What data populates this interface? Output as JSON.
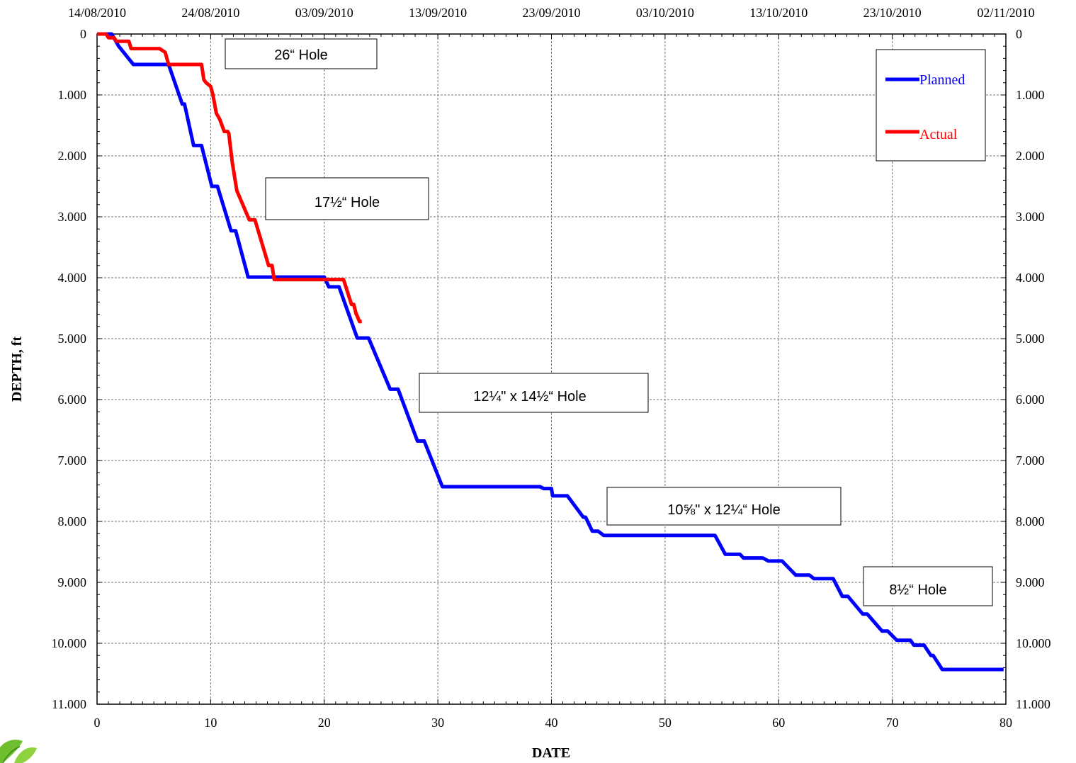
{
  "chart_data": {
    "type": "line",
    "xlabel": "DATE",
    "ylabel": "DEPTH, ft",
    "xlim": [
      0,
      80
    ],
    "ylim": [
      0,
      11000
    ],
    "y_inverted": true,
    "grid": true,
    "x_ticks": [
      0,
      10,
      20,
      30,
      40,
      50,
      60,
      70,
      80
    ],
    "x_tick_labels": [
      "0",
      "10",
      "20",
      "30",
      "40",
      "50",
      "60",
      "70",
      "80"
    ],
    "y_ticks": [
      0,
      1000,
      2000,
      3000,
      4000,
      5000,
      6000,
      7000,
      8000,
      9000,
      10000,
      11000
    ],
    "y_tick_labels": [
      "0",
      "1.000",
      "2.000",
      "3.000",
      "4.000",
      "5.000",
      "6.000",
      "7.000",
      "8.000",
      "9.000",
      "10.000",
      "11.000"
    ],
    "top_axis_ticks": [
      0,
      10,
      20,
      30,
      40,
      50,
      60,
      70,
      80
    ],
    "top_axis_labels": [
      "14/08/2010",
      "24/08/2010",
      "03/09/2010",
      "13/09/2010",
      "23/09/2010",
      "03/10/2010",
      "13/10/2010",
      "23/10/2010",
      "02/11/2010"
    ],
    "legend": {
      "position": "top-right",
      "entries": [
        "Planned",
        "Actual"
      ]
    },
    "series": [
      {
        "name": "Planned",
        "color": "#0000ff",
        "x": [
          0,
          1.3,
          1.9,
          3.2,
          6.3,
          7.5,
          7.7,
          8.5,
          9.2,
          10.1,
          10.6,
          11.8,
          12.2,
          13.3,
          20,
          20.4,
          21.3,
          22.9,
          23.9,
          25.8,
          26.5,
          28.2,
          28.8,
          30.4,
          39,
          39.3,
          40,
          40.1,
          41.4,
          42.8,
          43,
          43.6,
          44.1,
          44.6,
          54.4,
          55.3,
          56.6,
          56.9,
          58.6,
          59.1,
          60.3,
          61.5,
          62.7,
          63.1,
          64.8,
          65.6,
          66.1,
          67.4,
          67.8,
          69.1,
          69.6,
          70.4,
          71.6,
          71.9,
          72.8,
          73.4,
          73.6,
          74.4,
          79.8
        ],
        "y": [
          0,
          0,
          200,
          500,
          500,
          1150,
          1150,
          1830,
          1830,
          2500,
          2500,
          3230,
          3230,
          3990,
          3990,
          4150,
          4150,
          4990,
          4990,
          5830,
          5830,
          6680,
          6680,
          7430,
          7430,
          7460,
          7460,
          7580,
          7580,
          7930,
          7930,
          8160,
          8160,
          8230,
          8230,
          8540,
          8540,
          8600,
          8600,
          8650,
          8650,
          8880,
          8880,
          8940,
          8940,
          9230,
          9230,
          9520,
          9520,
          9800,
          9800,
          9950,
          9950,
          10030,
          10030,
          10200,
          10200,
          10430,
          10430
        ]
      },
      {
        "name": "Actual",
        "color": "#ff0000",
        "x": [
          0,
          0.8,
          1.0,
          1.5,
          1.7,
          2.8,
          3.0,
          5.5,
          6.0,
          6.3,
          9.2,
          9.4,
          9.6,
          10.0,
          10.2,
          10.5,
          10.8,
          11.2,
          11.5,
          11.6,
          11.9,
          12.3,
          13.4,
          13.9,
          15.1,
          15.4,
          15.6,
          21.7,
          22.4,
          22.6,
          22.8,
          22.9,
          23.1,
          23.3
        ],
        "y": [
          0,
          0,
          60,
          60,
          120,
          120,
          240,
          240,
          300,
          500,
          500,
          750,
          800,
          860,
          1000,
          1300,
          1400,
          1600,
          1600,
          1630,
          2100,
          2570,
          3050,
          3050,
          3800,
          3800,
          4030,
          4030,
          4440,
          4440,
          4590,
          4630,
          4720,
          4720
        ]
      }
    ],
    "annotations": [
      "26“ Hole",
      "17½“ Hole",
      "12¼\" x 14½“ Hole",
      "10⅝\" x 12¼“ Hole",
      "8½“ Hole"
    ]
  }
}
